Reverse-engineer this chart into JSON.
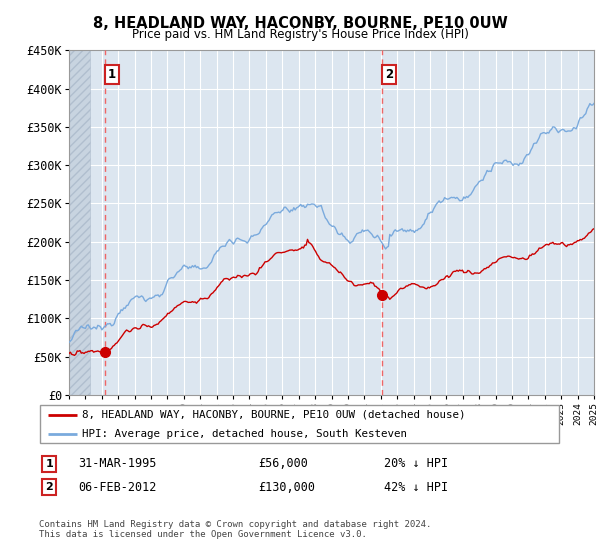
{
  "title": "8, HEADLAND WAY, HACONBY, BOURNE, PE10 0UW",
  "subtitle": "Price paid vs. HM Land Registry's House Price Index (HPI)",
  "ylim": [
    0,
    450000
  ],
  "yticks": [
    0,
    50000,
    100000,
    150000,
    200000,
    250000,
    300000,
    350000,
    400000,
    450000
  ],
  "ytick_labels": [
    "£0",
    "£50K",
    "£100K",
    "£150K",
    "£200K",
    "£250K",
    "£300K",
    "£350K",
    "£400K",
    "£450K"
  ],
  "x_start_year": 1993,
  "x_end_year": 2025,
  "sale1_date": 1995.21,
  "sale1_price": 56000,
  "sale1_label": "1",
  "sale2_date": 2012.09,
  "sale2_price": 130000,
  "sale2_label": "2",
  "legend_line1": "8, HEADLAND WAY, HACONBY, BOURNE, PE10 0UW (detached house)",
  "legend_line2": "HPI: Average price, detached house, South Kesteven",
  "footnote": "Contains HM Land Registry data © Crown copyright and database right 2024.\nThis data is licensed under the Open Government Licence v3.0.",
  "line_color_red": "#cc0000",
  "line_color_blue": "#7aaadd",
  "vline_color": "#ee6666",
  "background_plot": "#dce6f0",
  "hatch_color": "#c8d4e0",
  "grid_color": "#ffffff"
}
